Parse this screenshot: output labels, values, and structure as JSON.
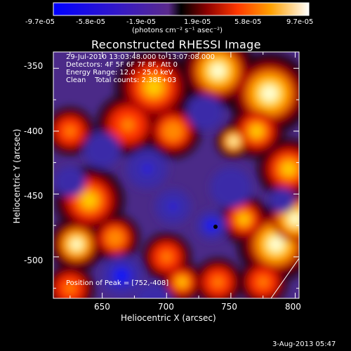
{
  "colorbar": {
    "ticks": [
      "-9.7e-05",
      "-5.8e-05",
      "-1.9e-05",
      "1.9e-05",
      "5.8e-05",
      "9.7e-05"
    ],
    "units": "(photons cm⁻² s⁻¹ asec⁻²)"
  },
  "plot": {
    "title": "Reconstructed RHESSI Image",
    "xlabel": "Heliocentric X (arcsec)",
    "ylabel": "Heliocentric Y (arcsec)",
    "xticks": [
      "650",
      "700",
      "750",
      "800"
    ],
    "yticks": [
      "-350",
      "-400",
      "-450",
      "-500"
    ],
    "info_lines": [
      "29-Jul-2010 13:03:48.000 to 13:07:08.000",
      "Detectors: 4F 5F 6F 7F 8F, Att 0",
      "Energy Range: 12.0 - 25.0 keV",
      "Clean    Total counts: 2.38E+03"
    ],
    "peak_label": "Position of Peak = [752,-408]",
    "colors": {
      "background": "#000000",
      "text": "#ffffff"
    }
  },
  "footer": {
    "timestamp": "3-Aug-2013 05:47"
  },
  "chart_data": {
    "type": "heatmap",
    "title": "Reconstructed RHESSI Image",
    "xlabel": "Heliocentric X (arcsec)",
    "ylabel": "Heliocentric Y (arcsec)",
    "xlim": [
      612,
      803
    ],
    "ylim": [
      -533,
      -337
    ],
    "colorscale_range": [
      -9.7e-05,
      9.7e-05
    ],
    "peak": [
      752,
      -408
    ],
    "blobs": [
      {
        "x": 740,
        "y": -352,
        "r": 22,
        "value": 9.5e-05
      },
      {
        "x": 780,
        "y": -370,
        "r": 24,
        "value": 9e-05
      },
      {
        "x": 795,
        "y": -430,
        "r": 18,
        "value": 7e-05
      },
      {
        "x": 690,
        "y": -365,
        "r": 22,
        "value": 7.5e-05
      },
      {
        "x": 670,
        "y": -395,
        "r": 18,
        "value": 6e-05
      },
      {
        "x": 705,
        "y": -400,
        "r": 16,
        "value": 6.5e-05
      },
      {
        "x": 770,
        "y": -400,
        "r": 16,
        "value": 7.5e-05
      },
      {
        "x": 752,
        "y": -408,
        "r": 10,
        "value": 9.7e-05
      },
      {
        "x": 625,
        "y": -400,
        "r": 14,
        "value": 5e-05
      },
      {
        "x": 640,
        "y": -455,
        "r": 20,
        "value": 7.5e-05
      },
      {
        "x": 630,
        "y": -490,
        "r": 16,
        "value": 8.5e-05
      },
      {
        "x": 625,
        "y": -525,
        "r": 14,
        "value": 6e-05
      },
      {
        "x": 660,
        "y": -485,
        "r": 14,
        "value": 6.5e-05
      },
      {
        "x": 700,
        "y": -500,
        "r": 14,
        "value": 6e-05
      },
      {
        "x": 712,
        "y": -520,
        "r": 12,
        "value": 7e-05
      },
      {
        "x": 740,
        "y": -520,
        "r": 14,
        "value": 5.5e-05
      },
      {
        "x": 785,
        "y": -490,
        "r": 22,
        "value": 9.5e-05
      },
      {
        "x": 800,
        "y": -470,
        "r": 18,
        "value": 9e-05
      },
      {
        "x": 760,
        "y": -470,
        "r": 14,
        "value": 7.5e-05
      },
      {
        "x": 775,
        "y": -520,
        "r": 14,
        "value": 6e-05
      },
      {
        "x": 705,
        "y": -460,
        "r": 14,
        "value": -6.5e-05
      },
      {
        "x": 735,
        "y": -475,
        "r": 12,
        "value": -9.7e-05
      },
      {
        "x": 665,
        "y": -515,
        "r": 16,
        "value": -9e-05
      },
      {
        "x": 685,
        "y": -430,
        "r": 16,
        "value": -6e-05
      },
      {
        "x": 650,
        "y": -415,
        "r": 14,
        "value": -5.5e-05
      },
      {
        "x": 730,
        "y": -385,
        "r": 14,
        "value": -5e-05
      },
      {
        "x": 790,
        "y": -455,
        "r": 10,
        "value": -4.5e-05
      },
      {
        "x": 750,
        "y": -445,
        "r": 16,
        "value": -5e-05
      },
      {
        "x": 625,
        "y": -440,
        "r": 12,
        "value": -4e-05
      },
      {
        "x": 690,
        "y": -535,
        "r": 14,
        "value": -3.5e-05
      }
    ]
  }
}
